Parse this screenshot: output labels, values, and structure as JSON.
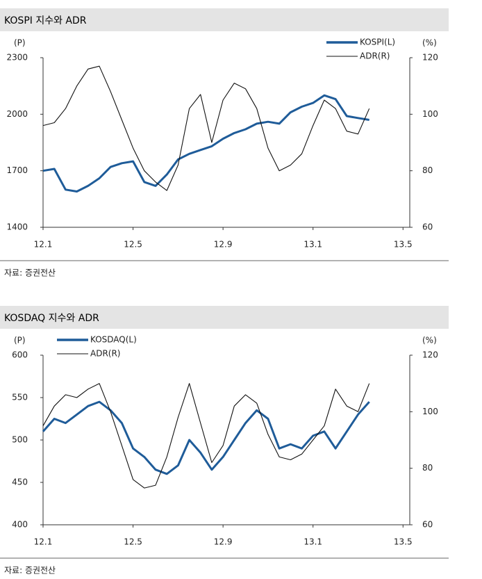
{
  "chart_data": [
    {
      "type": "line",
      "title": "KOSPI 지수와 ADR",
      "ylabel": "(P)",
      "y2label": "(%)",
      "source": "자료: 증권전산",
      "x": [
        0,
        0.5,
        1,
        1.5,
        2,
        2.5,
        3,
        3.5,
        4,
        4.5,
        5,
        5.5,
        6,
        6.5,
        7,
        7.5,
        8,
        8.5,
        9,
        9.5,
        10,
        10.5,
        11,
        11.5,
        12,
        12.5,
        13,
        13.5,
        14,
        14.5
      ],
      "xlim": [
        0,
        16.3
      ],
      "xticks": [
        {
          "value": 0,
          "label": "12.1"
        },
        {
          "value": 4,
          "label": "12.5"
        },
        {
          "value": 8,
          "label": "12.9"
        },
        {
          "value": 12,
          "label": "13.1"
        },
        {
          "value": 16,
          "label": "13.5"
        }
      ],
      "ylim": [
        1400,
        2300
      ],
      "yticks": [
        1400,
        1700,
        2000,
        2300
      ],
      "y2lim": [
        60,
        120
      ],
      "y2ticks": [
        60,
        80,
        100,
        120
      ],
      "legend": "upper right",
      "grid": false,
      "series": [
        {
          "name": "KOSPI(L)",
          "color": "#1f5c99",
          "values": [
            1700,
            1710,
            1600,
            1590,
            1620,
            1660,
            1720,
            1740,
            1750,
            1640,
            1620,
            1680,
            1760,
            1790,
            1810,
            1830,
            1870,
            1900,
            1920,
            1950,
            1960,
            1950,
            2010,
            2040,
            2060,
            2100,
            2080,
            1990,
            1980,
            1970
          ]
        },
        {
          "name": "ADR(R)",
          "color": "#111111",
          "axis": "y2",
          "values": [
            96,
            97,
            102,
            110,
            116,
            117,
            108,
            98,
            88,
            80,
            76,
            73,
            82,
            102,
            107,
            90,
            105,
            111,
            109,
            102,
            88,
            80,
            82,
            86,
            96,
            105,
            102,
            94,
            93,
            102
          ]
        }
      ]
    },
    {
      "type": "line",
      "title": "KOSDAQ 지수와 ADR",
      "ylabel": "(P)",
      "y2label": "(%)",
      "source": "자료: 증권전산",
      "x": [
        0,
        0.5,
        1,
        1.5,
        2,
        2.5,
        3,
        3.5,
        4,
        4.5,
        5,
        5.5,
        6,
        6.5,
        7,
        7.5,
        8,
        8.5,
        9,
        9.5,
        10,
        10.5,
        11,
        11.5,
        12,
        12.5,
        13,
        13.5,
        14,
        14.5
      ],
      "xlim": [
        0,
        16.3
      ],
      "xticks": [
        {
          "value": 0,
          "label": "12.1"
        },
        {
          "value": 4,
          "label": "12.5"
        },
        {
          "value": 8,
          "label": "12.9"
        },
        {
          "value": 12,
          "label": "13.1"
        },
        {
          "value": 16,
          "label": "13.5"
        }
      ],
      "ylim": [
        400,
        600
      ],
      "yticks": [
        400,
        450,
        500,
        550,
        600
      ],
      "y2lim": [
        60,
        120
      ],
      "y2ticks": [
        60,
        80,
        100,
        120
      ],
      "legend": "upper left",
      "grid": false,
      "series": [
        {
          "name": "KOSDAQ(L)",
          "color": "#1f5c99",
          "values": [
            510,
            525,
            520,
            530,
            540,
            545,
            535,
            520,
            490,
            480,
            465,
            460,
            470,
            500,
            485,
            465,
            480,
            500,
            520,
            535,
            525,
            490,
            495,
            490,
            505,
            510,
            490,
            510,
            530,
            545
          ]
        },
        {
          "name": "ADR(R)",
          "color": "#111111",
          "axis": "y2",
          "values": [
            95,
            102,
            106,
            105,
            108,
            110,
            100,
            88,
            76,
            73,
            74,
            84,
            98,
            110,
            96,
            82,
            88,
            102,
            106,
            103,
            92,
            84,
            83,
            85,
            90,
            95,
            108,
            102,
            100,
            110
          ]
        }
      ]
    }
  ]
}
